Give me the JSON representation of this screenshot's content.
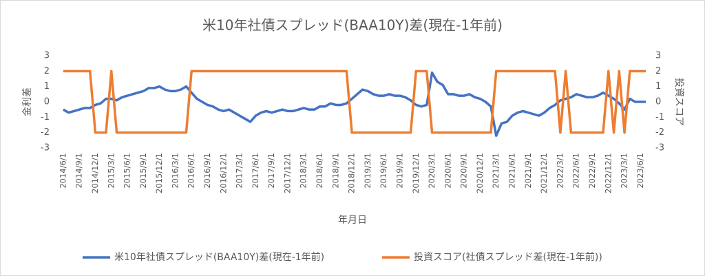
{
  "chart_data": {
    "type": "line",
    "title": "米10年社債スプレッド(BAA10Y)差(現在-1年前)",
    "y_label": "金利差",
    "y2_label": "投資スコア",
    "x_label": "年月日",
    "categories": [
      "2014/6/1",
      null,
      null,
      "2014/9/1",
      null,
      null,
      "2014/12/1",
      null,
      null,
      "2015/3/1",
      null,
      null,
      "2015/6/1",
      null,
      null,
      "2015/9/1",
      null,
      null,
      "2015/12/1",
      null,
      null,
      "2016/3/1",
      null,
      null,
      "2016/6/1",
      null,
      null,
      "2016/9/1",
      null,
      null,
      "2016/12/1",
      null,
      null,
      "2017/3/1",
      null,
      null,
      "2017/6/1",
      null,
      null,
      "2017/9/1",
      null,
      null,
      "2017/12/1",
      null,
      null,
      "2018/3/1",
      null,
      null,
      "2018/6/1",
      null,
      null,
      "2018/9/1",
      null,
      null,
      "2018/12/1",
      null,
      null,
      "2019/3/1",
      null,
      null,
      "2019/6/1",
      null,
      null,
      "2019/9/1",
      null,
      null,
      "2019/12/1",
      null,
      null,
      "2020/3/1",
      null,
      null,
      "2020/6/1",
      null,
      null,
      "2020/9/1",
      null,
      null,
      "2020/12/1",
      null,
      null,
      "2021/3/1",
      null,
      null,
      "2021/6/1",
      null,
      null,
      "2021/9/1",
      null,
      null,
      "2021/12/1",
      null,
      null,
      "2022/3/1",
      null,
      null,
      "2022/6/1",
      null,
      null,
      "2022/9/1",
      null,
      null,
      "2022/12/1",
      null,
      null,
      "2023/3/1",
      null,
      null,
      "2023/6/1",
      null
    ],
    "series": [
      {
        "name": "米10年社債スプレッド(BAA10Y)差(現在-1年前)",
        "color": "#4472c4",
        "values": [
          -0.5,
          -0.7,
          -0.6,
          -0.5,
          -0.4,
          -0.4,
          -0.2,
          -0.1,
          0.2,
          0.2,
          0.1,
          0.3,
          0.4,
          0.5,
          0.6,
          0.7,
          0.9,
          0.9,
          1.0,
          0.8,
          0.7,
          0.7,
          0.8,
          1.0,
          0.6,
          0.2,
          0.0,
          -0.2,
          -0.3,
          -0.5,
          -0.6,
          -0.5,
          -0.7,
          -0.9,
          -1.1,
          -1.3,
          -0.9,
          -0.7,
          -0.6,
          -0.7,
          -0.6,
          -0.5,
          -0.6,
          -0.6,
          -0.5,
          -0.4,
          -0.5,
          -0.5,
          -0.3,
          -0.3,
          -0.1,
          -0.2,
          -0.2,
          -0.1,
          0.2,
          0.5,
          0.8,
          0.7,
          0.5,
          0.4,
          0.4,
          0.5,
          0.4,
          0.4,
          0.3,
          0.1,
          -0.2,
          -0.3,
          -0.2,
          1.9,
          1.3,
          1.1,
          0.5,
          0.5,
          0.4,
          0.4,
          0.5,
          0.3,
          0.2,
          0.0,
          -0.3,
          -2.2,
          -1.4,
          -1.3,
          -0.9,
          -0.7,
          -0.6,
          -0.7,
          -0.8,
          -0.9,
          -0.7,
          -0.4,
          -0.2,
          0.1,
          0.2,
          0.3,
          0.5,
          0.4,
          0.3,
          0.3,
          0.4,
          0.6,
          0.4,
          0.2,
          -0.1,
          -0.5,
          0.2,
          0.0,
          0.0,
          0.0
        ]
      },
      {
        "name": "投資スコア(社債スプレッド差(現在-1年前))",
        "color": "#ed7d31",
        "axis": "y2",
        "values": [
          2,
          2,
          2,
          2,
          2,
          2,
          -2,
          -2,
          -2,
          2,
          -2,
          -2,
          -2,
          -2,
          -2,
          -2,
          -2,
          -2,
          -2,
          -2,
          -2,
          -2,
          -2,
          -2,
          2,
          2,
          2,
          2,
          2,
          2,
          2,
          2,
          2,
          2,
          2,
          2,
          2,
          2,
          2,
          2,
          2,
          2,
          2,
          2,
          2,
          2,
          2,
          2,
          2,
          2,
          2,
          2,
          2,
          2,
          -2,
          -2,
          -2,
          -2,
          -2,
          -2,
          -2,
          -2,
          -2,
          -2,
          -2,
          -2,
          2,
          2,
          2,
          -2,
          -2,
          -2,
          -2,
          -2,
          -2,
          -2,
          -2,
          -2,
          -2,
          -2,
          -2,
          2,
          2,
          2,
          2,
          2,
          2,
          2,
          2,
          2,
          2,
          2,
          2,
          -2,
          2,
          -2,
          -2,
          -2,
          -2,
          -2,
          -2,
          -2,
          2,
          -2,
          2,
          -2,
          2,
          2,
          2,
          2
        ]
      }
    ],
    "ylim": [
      -3,
      3
    ],
    "yticks": [
      -3,
      -2,
      -1,
      0,
      1,
      2,
      3
    ],
    "y2lim": [
      -3,
      3
    ],
    "y2ticks": [
      -3,
      -2,
      -1,
      0,
      1,
      2,
      3
    ],
    "grid": false,
    "legend": "bottom"
  }
}
